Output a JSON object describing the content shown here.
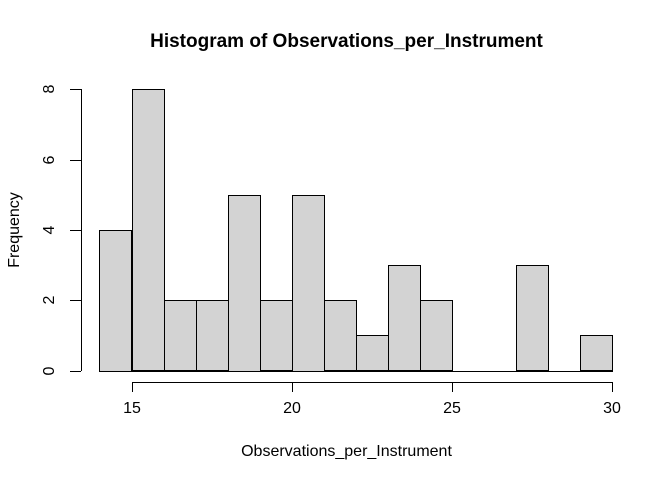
{
  "chart_data": {
    "type": "bar",
    "subtype": "histogram",
    "title": "Histogram of Observations_per_Instrument",
    "xlabel": "Observations_per_Instrument",
    "ylabel": "Frequency",
    "xlim": [
      14,
      30
    ],
    "ylim": [
      0,
      8
    ],
    "x_ticks": [
      15,
      20,
      25,
      30
    ],
    "y_ticks": [
      0,
      2,
      4,
      6,
      8
    ],
    "grid": "off",
    "legend": "none",
    "bins": [
      {
        "start": 14,
        "end": 15,
        "count": 4
      },
      {
        "start": 15,
        "end": 16,
        "count": 8
      },
      {
        "start": 16,
        "end": 17,
        "count": 2
      },
      {
        "start": 17,
        "end": 18,
        "count": 2
      },
      {
        "start": 18,
        "end": 19,
        "count": 5
      },
      {
        "start": 19,
        "end": 20,
        "count": 2
      },
      {
        "start": 20,
        "end": 21,
        "count": 5
      },
      {
        "start": 21,
        "end": 22,
        "count": 2
      },
      {
        "start": 22,
        "end": 23,
        "count": 1
      },
      {
        "start": 23,
        "end": 24,
        "count": 3
      },
      {
        "start": 24,
        "end": 25,
        "count": 2
      },
      {
        "start": 25,
        "end": 26,
        "count": 0
      },
      {
        "start": 26,
        "end": 27,
        "count": 0
      },
      {
        "start": 27,
        "end": 28,
        "count": 3
      },
      {
        "start": 28,
        "end": 29,
        "count": 0
      },
      {
        "start": 29,
        "end": 30,
        "count": 1
      }
    ],
    "colors": {
      "bar_fill": "#d3d3d3",
      "bar_stroke": "#000000",
      "axis": "#000000",
      "text": "#000000",
      "background": "#ffffff"
    }
  }
}
